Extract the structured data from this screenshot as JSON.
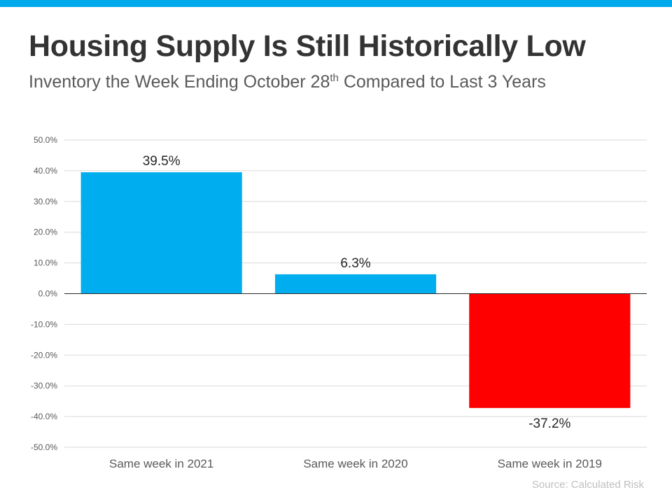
{
  "header": {
    "title": "Housing Supply Is Still Historically Low",
    "subtitle_pre": "Inventory the Week Ending October 28",
    "subtitle_sup": "th",
    "subtitle_post": " Compared to Last 3 Years"
  },
  "source": "Source: Calculated Risk",
  "colors": {
    "accent": "#00a9ec",
    "positive_bar": "#00aeef",
    "negative_bar": "#ff0000"
  },
  "chart_data": {
    "type": "bar",
    "categories": [
      "Same week in 2021",
      "Same week in 2020",
      "Same week in 2019"
    ],
    "values": [
      39.5,
      6.3,
      -37.2
    ],
    "data_labels": [
      "39.5%",
      "6.3%",
      "-37.2%"
    ],
    "ylim": [
      -50,
      50
    ],
    "yticks": [
      50,
      40,
      30,
      20,
      10,
      0,
      -10,
      -20,
      -30,
      -40,
      -50
    ],
    "ytick_labels": [
      "50.0%",
      "40.0%",
      "30.0%",
      "20.0%",
      "10.0%",
      "0.0%",
      "-10.0%",
      "-20.0%",
      "-30.0%",
      "-40.0%",
      "-50.0%"
    ],
    "grid": true,
    "legend": "none"
  }
}
